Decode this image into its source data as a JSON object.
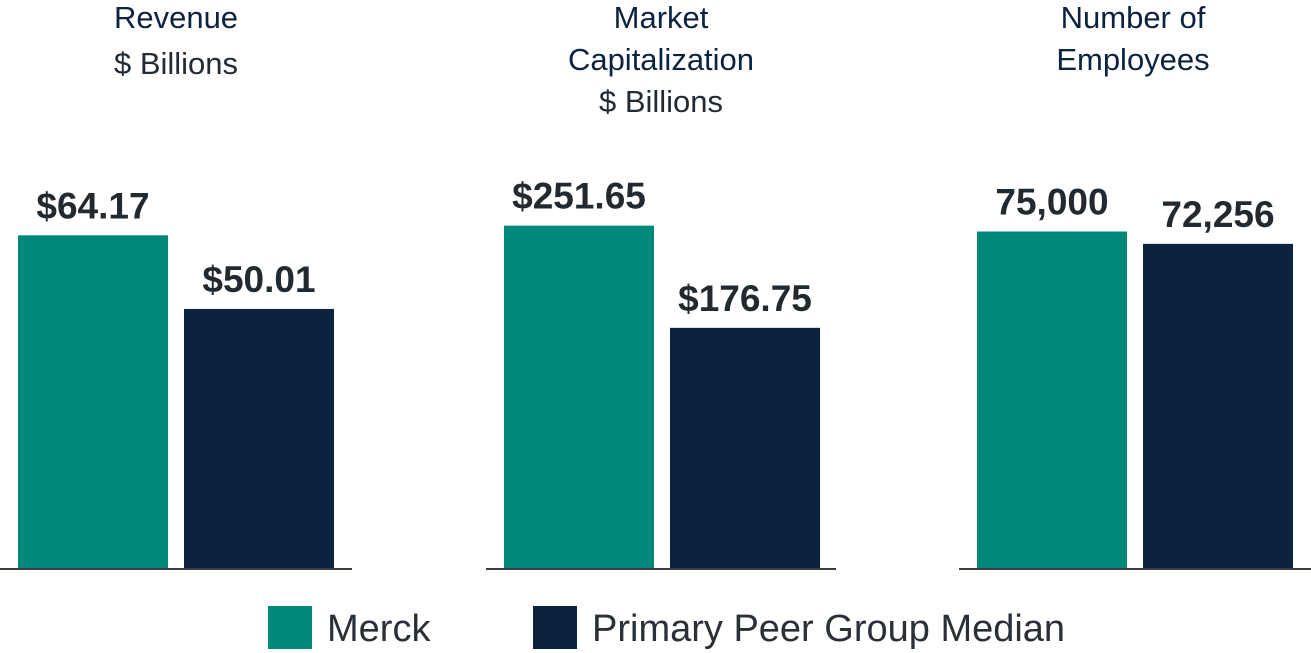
{
  "colors": {
    "merck": "#00887a",
    "peer": "#0b2340"
  },
  "legend": [
    {
      "key": "merck",
      "label": "Merck"
    },
    {
      "key": "peer",
      "label": "Primary Peer Group Median"
    }
  ],
  "chart_data": [
    {
      "type": "bar",
      "title": [
        "Revenue"
      ],
      "subtitle": "$ Billions",
      "categories": [
        "Merck",
        "Primary Peer Group Median"
      ],
      "values": [
        64.17,
        50.01
      ],
      "value_labels": [
        "$64.17",
        "$50.01"
      ],
      "ylim": [
        0,
        90
      ],
      "grid": false
    },
    {
      "type": "bar",
      "title": [
        "Market",
        "Capitalization"
      ],
      "subtitle": "$ Billions",
      "categories": [
        "Merck",
        "Primary Peer Group Median"
      ],
      "values": [
        251.65,
        176.75
      ],
      "value_labels": [
        "$251.65",
        "$176.75"
      ],
      "ylim": [
        0,
        343
      ],
      "grid": false
    },
    {
      "type": "bar",
      "title": [
        "Number of",
        "Employees"
      ],
      "subtitle": "",
      "categories": [
        "Merck",
        "Primary Peer Group Median"
      ],
      "values": [
        75000,
        72256
      ],
      "value_labels": [
        "75,000",
        "72,256"
      ],
      "ylim": [
        0,
        104000
      ],
      "grid": false
    }
  ]
}
